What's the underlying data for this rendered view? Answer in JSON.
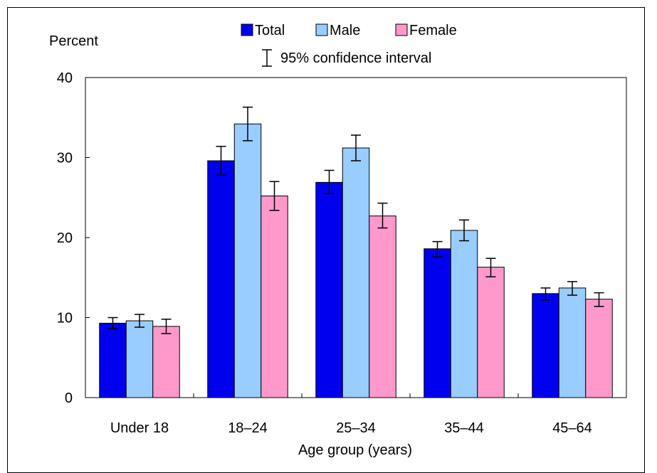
{
  "chart_data": {
    "type": "bar",
    "ylabel": "Percent",
    "xlabel": "Age group (years)",
    "ylim": [
      0,
      40
    ],
    "yticks": [
      0,
      10,
      20,
      30,
      40
    ],
    "categories": [
      "Under 18",
      "18–24",
      "25–34",
      "35–44",
      "45–64"
    ],
    "series": [
      {
        "name": "Total",
        "color": "#0000EE",
        "values": [
          9.3,
          29.6,
          26.9,
          18.6,
          13.0
        ],
        "ci_low": [
          8.6,
          27.8,
          25.5,
          17.6,
          12.2
        ],
        "ci_high": [
          10.0,
          31.4,
          28.4,
          19.5,
          13.7
        ]
      },
      {
        "name": "Male",
        "color": "#99CCFF",
        "values": [
          9.6,
          34.2,
          31.2,
          20.9,
          13.7
        ],
        "ci_low": [
          8.8,
          32.1,
          29.6,
          19.6,
          12.8
        ],
        "ci_high": [
          10.4,
          36.3,
          32.8,
          22.2,
          14.5
        ]
      },
      {
        "name": "Female",
        "color": "#FF99CC",
        "values": [
          8.9,
          25.2,
          22.7,
          16.3,
          12.3
        ],
        "ci_low": [
          8.0,
          23.4,
          21.2,
          15.1,
          11.4
        ],
        "ci_high": [
          9.8,
          27.0,
          24.3,
          17.4,
          13.1
        ]
      }
    ],
    "ci_legend_label": "95% confidence interval",
    "legend_position": "top-center",
    "grid": false
  }
}
